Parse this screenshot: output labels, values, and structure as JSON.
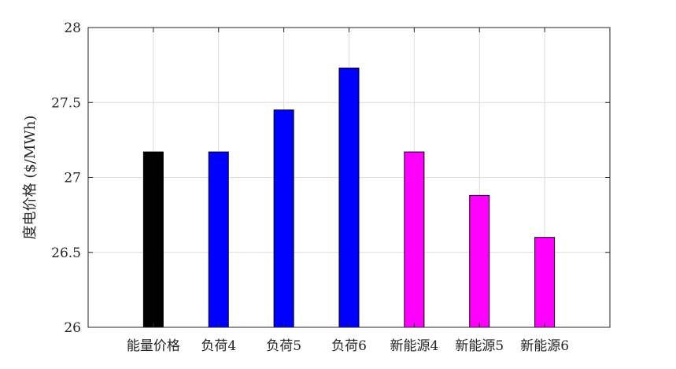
{
  "chart_data": {
    "type": "bar",
    "title": "",
    "xlabel": "",
    "ylabel": "度电价格 ($/MWh)",
    "ylim": [
      26,
      28
    ],
    "yticks": [
      {
        "value": 26,
        "label": "26"
      },
      {
        "value": 26.5,
        "label": "26.5"
      },
      {
        "value": 27,
        "label": "27"
      },
      {
        "value": 27.5,
        "label": "27.5"
      },
      {
        "value": 28,
        "label": "28"
      }
    ],
    "grid": true,
    "legend": "none",
    "categories": [
      "能量价格",
      "负荷4",
      "负荷5",
      "负荷6",
      "新能源4",
      "新能源5",
      "新能源6"
    ],
    "values": [
      27.17,
      27.17,
      27.45,
      27.73,
      27.17,
      26.88,
      26.6
    ],
    "bar_colors": [
      "#000000",
      "#0000ff",
      "#0000ff",
      "#0000ff",
      "#ff00ff",
      "#ff00ff",
      "#ff00ff"
    ]
  }
}
